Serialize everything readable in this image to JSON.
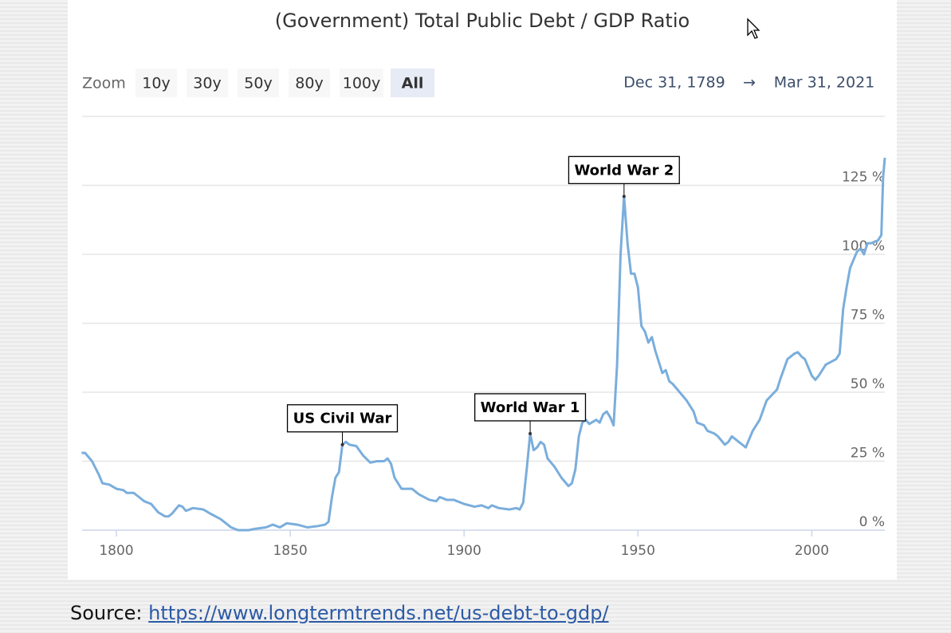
{
  "chart_data": {
    "type": "line",
    "title": "(Government) Total Public Debt / GDP Ratio",
    "color": "#7aaedc",
    "x": [
      1790,
      1791,
      1793,
      1795,
      1796,
      1798,
      1800,
      1802,
      1803,
      1805,
      1806,
      1808,
      1810,
      1812,
      1814,
      1815,
      1816,
      1818,
      1819,
      1820,
      1822,
      1825,
      1827,
      1830,
      1833,
      1835,
      1838,
      1840,
      1843,
      1845,
      1847,
      1849,
      1852,
      1855,
      1858,
      1860,
      1861,
      1862,
      1863,
      1864,
      1865,
      1866,
      1867,
      1869,
      1871,
      1873,
      1875,
      1877,
      1878,
      1879,
      1880,
      1882,
      1885,
      1887,
      1890,
      1892,
      1893,
      1895,
      1897,
      1900,
      1903,
      1905,
      1907,
      1908,
      1910,
      1913,
      1915,
      1916,
      1917,
      1918,
      1919,
      1920,
      1921,
      1922,
      1923,
      1924,
      1926,
      1928,
      1930,
      1931,
      1932,
      1933,
      1934,
      1935,
      1936,
      1938,
      1939,
      1940,
      1941,
      1942,
      1943,
      1944,
      1945,
      1946,
      1947,
      1948,
      1949,
      1950,
      1951,
      1952,
      1953,
      1954,
      1955,
      1956,
      1957,
      1958,
      1959,
      1960,
      1962,
      1964,
      1966,
      1967,
      1969,
      1970,
      1972,
      1973,
      1975,
      1976,
      1977,
      1979,
      1980,
      1981,
      1982,
      1983,
      1985,
      1987,
      1990,
      1991,
      1993,
      1995,
      1996,
      1997,
      1998,
      1999,
      2000,
      2001,
      2002,
      2004,
      2007,
      2008,
      2009,
      2010,
      2011,
      2012,
      2013,
      2014,
      2015,
      2016,
      2017,
      2019,
      2020,
      2020.5,
      2021
    ],
    "values": [
      28,
      28,
      25,
      20,
      17,
      16.5,
      15,
      14.5,
      13.5,
      13.5,
      12.5,
      10.5,
      9.5,
      6.5,
      5,
      5,
      6,
      9,
      8.5,
      7,
      8,
      7.5,
      6,
      4,
      1,
      0,
      0,
      0.5,
      1,
      2,
      1,
      2.5,
      2,
      1,
      1.5,
      2,
      3,
      12,
      19,
      21,
      31,
      32,
      31,
      30.5,
      27,
      24.5,
      25,
      25,
      26,
      24,
      19,
      15,
      15,
      13,
      11,
      10.5,
      12,
      11,
      11,
      9.5,
      8.5,
      9,
      8,
      9,
      8,
      7.5,
      8,
      7.5,
      10,
      22,
      35,
      29,
      30,
      32,
      31,
      26,
      23,
      19,
      16,
      17,
      22,
      34,
      39,
      40,
      38.5,
      40,
      39,
      42,
      43,
      41,
      38,
      60,
      100,
      121,
      104,
      93,
      93,
      88,
      74,
      72,
      68,
      70,
      65,
      61,
      57,
      58,
      54,
      53,
      50,
      47,
      43,
      39,
      38,
      36,
      35,
      34,
      31,
      32,
      34,
      32,
      31,
      30,
      33,
      36,
      40,
      47,
      51,
      55,
      62,
      64,
      64.5,
      63,
      62,
      59,
      56,
      54.5,
      56,
      60,
      62,
      64,
      80,
      88,
      95,
      98,
      101,
      102,
      100,
      104,
      104,
      105,
      107,
      128,
      135
    ],
    "xlim": [
      1789,
      2021
    ],
    "xticks": [
      1800,
      1850,
      1900,
      1950,
      2000
    ],
    "ylim": [
      0,
      150
    ],
    "yticks": [
      {
        "value": 0,
        "label": "0 %"
      },
      {
        "value": 25,
        "label": "25 %"
      },
      {
        "value": 50,
        "label": "50 %"
      },
      {
        "value": 75,
        "label": "75 %"
      },
      {
        "value": 100,
        "label": "100 %"
      },
      {
        "value": 125,
        "label": "125 %"
      }
    ],
    "grid": true,
    "annotations": [
      {
        "text": "US Civil War",
        "x": 1865,
        "y": 31
      },
      {
        "text": "World War 1",
        "x": 1919,
        "y": 35
      },
      {
        "text": "World War 2",
        "x": 1946,
        "y": 121
      }
    ],
    "range_selector": {
      "label": "Zoom",
      "buttons": [
        "10y",
        "30y",
        "50y",
        "80y",
        "100y",
        "All"
      ],
      "selected_index": 5,
      "from": "Dec 31, 1789",
      "arrow": "→",
      "to": "Mar 31, 2021"
    }
  },
  "source": {
    "label": "Source:",
    "url": "https://www.longtermtrends.net/us-debt-to-gdp/"
  }
}
